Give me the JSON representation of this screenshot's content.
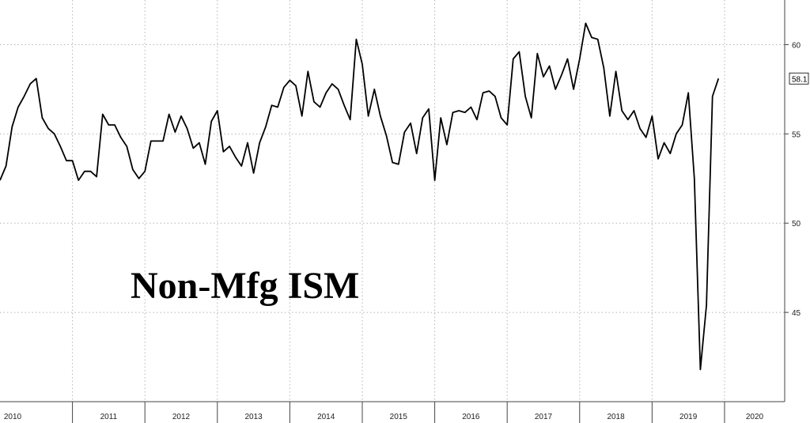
{
  "colors": {
    "line": "#000000",
    "grid": "#b5b5b5",
    "axis": "#444444"
  },
  "chart_data": {
    "type": "line",
    "title": "Non-Mfg ISM",
    "xlabel": "",
    "ylabel": "",
    "grid": true,
    "legend": "none",
    "ylim": [
      40,
      62.5
    ],
    "yticks": [
      45,
      50,
      55,
      60
    ],
    "xlim": [
      2010.0,
      2020.83
    ],
    "year_labels": [
      "2010",
      "2011",
      "2012",
      "2013",
      "2014",
      "2015",
      "2016",
      "2017",
      "2018",
      "2019",
      "2020"
    ],
    "last_value_label": "58.1",
    "series": [
      {
        "values": [
          52.4,
          53.2,
          55.4,
          56.5,
          57.1,
          57.8,
          58.1,
          55.9,
          55.3,
          55.0,
          54.3,
          53.5,
          53.5,
          52.4,
          52.9,
          52.9,
          52.6,
          56.1,
          55.5,
          55.5,
          54.8,
          54.3,
          53.0,
          52.5,
          52.9,
          54.6,
          54.6,
          54.6,
          56.1,
          55.1,
          56.0,
          55.3,
          54.2,
          54.5,
          53.3,
          55.7,
          56.3,
          54.0,
          54.3,
          53.7,
          53.2,
          54.5,
          52.8,
          54.5,
          55.4,
          56.6,
          56.5,
          57.6,
          58.0,
          57.7,
          56.0,
          58.5,
          56.8,
          56.5,
          57.3,
          57.8,
          57.5,
          56.6,
          55.8,
          60.3,
          58.9,
          56.0,
          57.5,
          56.0,
          54.9,
          53.4,
          53.3,
          55.1,
          55.6,
          53.9,
          55.9,
          56.4,
          52.4,
          55.9,
          54.4,
          56.2,
          56.3,
          56.2,
          56.5,
          55.8,
          57.3,
          57.4,
          57.1,
          55.9,
          55.5,
          59.2,
          59.6,
          57.1,
          55.9,
          59.5,
          58.2,
          58.8,
          57.5,
          58.3,
          59.2,
          57.5,
          59.2,
          61.2,
          60.4,
          60.3,
          58.7,
          56.0,
          58.5,
          56.3,
          55.8,
          56.3,
          55.3,
          54.8,
          56.0,
          53.6,
          54.5,
          53.9,
          55.0,
          55.5,
          57.3,
          52.5,
          41.8,
          45.4,
          57.1,
          58.1
        ]
      }
    ]
  }
}
